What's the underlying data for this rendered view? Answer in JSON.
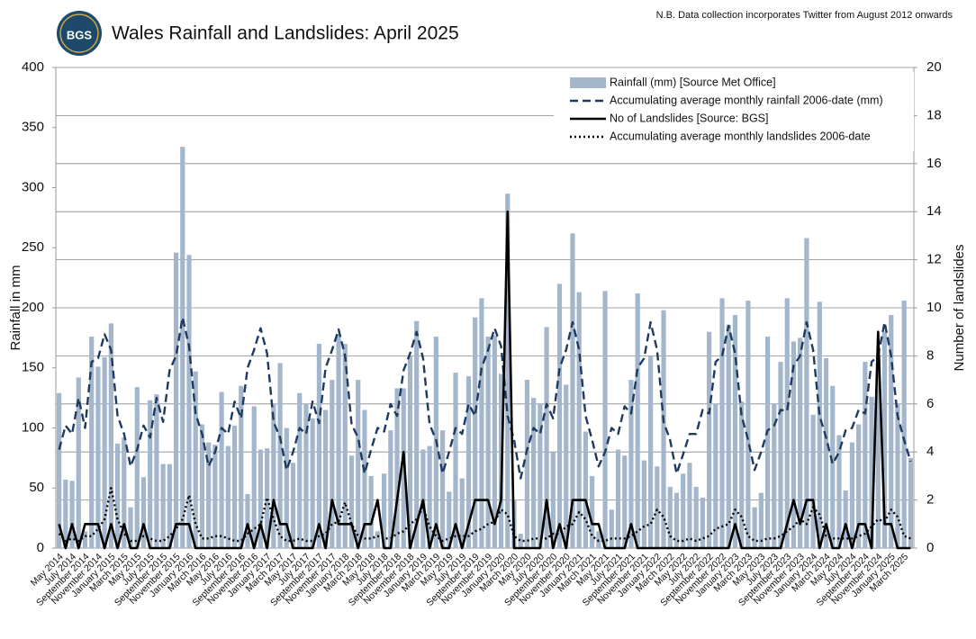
{
  "logo_text": "BGS",
  "note": "N.B. Data collection incorporates Twitter from August 2012 onwards",
  "chart_data": {
    "type": "combo",
    "title": "Wales Rainfall and Landslides: April 2025",
    "y_label": "Rainfall in mm",
    "y2_label": "Number of landslides",
    "ylim": [
      0,
      400
    ],
    "yticks": [
      0,
      50,
      100,
      150,
      200,
      250,
      300,
      350,
      400
    ],
    "y2lim": [
      0,
      20
    ],
    "y2ticks": [
      0,
      2,
      4,
      6,
      8,
      10,
      12,
      14,
      16,
      18,
      20
    ],
    "grid": "y2",
    "legend": "upper right",
    "categories": [
      "May 2014",
      null,
      "July 2014",
      null,
      "September 2014",
      null,
      "November 2014",
      null,
      "January 2015",
      null,
      "March 2015",
      null,
      "May 2015",
      null,
      "July 2015",
      null,
      "September 2015",
      null,
      "November 2015",
      null,
      "January 2016",
      null,
      "March 2016",
      null,
      "May 2016",
      null,
      "July 2016",
      null,
      "September 2016",
      null,
      "November 2016",
      null,
      "January 2017",
      null,
      "March 2017",
      null,
      "May 2017",
      null,
      "July 2017",
      null,
      "September 2017",
      null,
      "November 2017",
      null,
      "January 2018",
      null,
      "March 2018",
      null,
      "May 2018",
      null,
      "July 2018",
      null,
      "September 2018",
      null,
      "November 2018",
      null,
      "January 2019",
      null,
      "March 2019",
      null,
      "May 2019",
      null,
      "July 2019",
      null,
      "September 2019",
      null,
      "November 2019",
      null,
      "January 2020",
      null,
      "March 2020",
      null,
      "May 2020",
      null,
      "July 2020",
      null,
      "September 2020",
      null,
      "November 2020",
      null,
      "January 2021",
      null,
      "March 2021",
      null,
      "May 2021",
      null,
      "July 2021",
      null,
      "September 2021",
      null,
      "November 2021",
      null,
      "January 2022",
      null,
      "March 2022",
      null,
      "May 2022",
      null,
      "July 2022",
      null,
      "September 2022",
      null,
      "November 2022",
      null,
      "January 2023",
      null,
      "March 2023",
      null,
      "May 2023",
      null,
      "July 2023",
      null,
      "September 2023",
      null,
      "November 2023",
      null,
      "January 2024",
      null,
      "March 2024",
      null,
      "May 2024",
      null,
      "July 2024",
      null,
      "September 2024",
      null,
      "November 2024",
      null,
      "January 2025",
      null,
      "March 2025",
      null
    ],
    "series": [
      {
        "name": "Rainfall (mm) [Source Met Office]",
        "type": "bar",
        "axis": "y",
        "color": "#a3b6cc",
        "values": [
          129,
          57,
          56,
          142,
          14,
          176,
          151,
          159,
          187,
          87,
          92,
          34,
          134,
          59,
          123,
          128,
          70,
          70,
          246,
          334,
          244,
          147,
          103,
          88,
          86,
          130,
          85,
          102,
          135,
          45,
          118,
          82,
          83,
          120,
          154,
          100,
          71,
          129,
          120,
          108,
          170,
          115,
          140,
          178,
          170,
          77,
          140,
          115,
          60,
          14,
          62,
          98,
          133,
          133,
          160,
          189,
          82,
          85,
          176,
          98,
          47,
          146,
          58,
          143,
          192,
          208,
          176,
          177,
          145,
          295,
          40,
          12,
          140,
          125,
          120,
          184,
          80,
          220,
          136,
          262,
          213,
          97,
          60,
          14,
          214,
          32,
          82,
          77,
          140,
          212,
          73,
          160,
          68,
          198,
          51,
          46,
          62,
          71,
          51,
          42,
          180,
          120,
          208,
          186,
          194,
          122,
          206,
          34,
          46,
          176,
          120,
          155,
          208,
          172,
          175,
          258,
          111,
          205,
          158,
          135,
          94,
          48,
          88,
          103,
          155,
          126,
          160,
          180,
          194,
          120,
          206,
          75
        ]
      },
      {
        "name": "Accumulating average monthly rainfall 2006-date (mm)",
        "type": "line",
        "style": "dashed",
        "axis": "y",
        "color": "#1f3a5f",
        "values": [
          82,
          102,
          95,
          125,
          100,
          155,
          158,
          178,
          165,
          110,
          95,
          68,
          82,
          102,
          92,
          125,
          105,
          148,
          160,
          192,
          168,
          112,
          95,
          68,
          80,
          100,
          95,
          122,
          108,
          150,
          165,
          183,
          162,
          105,
          92,
          65,
          80,
          100,
          95,
          122,
          104,
          150,
          165,
          182,
          160,
          103,
          92,
          62,
          82,
          100,
          97,
          120,
          110,
          148,
          162,
          180,
          158,
          103,
          90,
          62,
          80,
          100,
          95,
          120,
          110,
          150,
          165,
          183,
          168,
          110,
          90,
          58,
          82,
          100,
          95,
          120,
          108,
          150,
          165,
          188,
          165,
          110,
          90,
          68,
          80,
          100,
          95,
          118,
          112,
          150,
          158,
          188,
          165,
          105,
          90,
          62,
          78,
          95,
          95,
          115,
          112,
          155,
          160,
          185,
          162,
          110,
          90,
          65,
          80,
          98,
          102,
          115,
          114,
          152,
          160,
          188,
          165,
          110,
          92,
          70,
          80,
          98,
          100,
          115,
          112,
          155,
          160,
          188,
          160,
          110,
          90,
          72
        ]
      },
      {
        "name": "No of Landslides [Source: BGS]",
        "type": "line",
        "style": "solid",
        "axis": "y2",
        "color": "#000000",
        "values": [
          1,
          0,
          1,
          0,
          1,
          1,
          1,
          0,
          1,
          0,
          1,
          0,
          0,
          1,
          0,
          0,
          0,
          0,
          1,
          1,
          1,
          0,
          0,
          0,
          0,
          0,
          0,
          0,
          0,
          1,
          0,
          1,
          0,
          2,
          1,
          1,
          0,
          0,
          0,
          0,
          1,
          0,
          2,
          1,
          1,
          1,
          0,
          1,
          1,
          2,
          0,
          0,
          2,
          4,
          0,
          1,
          2,
          0,
          1,
          0,
          0,
          1,
          0,
          1,
          2,
          2,
          2,
          1,
          2,
          14,
          0,
          0,
          0,
          0,
          0,
          2,
          0,
          1,
          0,
          2,
          2,
          2,
          1,
          1,
          0,
          0,
          0,
          0,
          1,
          0,
          0,
          0,
          0,
          0,
          0,
          0,
          0,
          0,
          0,
          0,
          0,
          0,
          0,
          0,
          1,
          0,
          0,
          0,
          0,
          0,
          0,
          0,
          1,
          2,
          1,
          2,
          2,
          0,
          1,
          0,
          0,
          1,
          0,
          1,
          1,
          0,
          9,
          1,
          1,
          0,
          0,
          0
        ]
      },
      {
        "name": "Accumulating average monthly landslides 2006-date",
        "type": "line",
        "style": "dotted",
        "axis": "y2",
        "color": "#000000",
        "values": [
          0.6,
          0.3,
          0.4,
          0.3,
          0.5,
          0.5,
          0.8,
          1.2,
          2.5,
          1.2,
          0.6,
          0.3,
          0.3,
          0.5,
          0.4,
          0.3,
          0.3,
          0.5,
          0.8,
          1.2,
          2.2,
          1.0,
          0.4,
          0.4,
          0.5,
          0.5,
          0.4,
          0.3,
          0.3,
          0.6,
          0.8,
          1.0,
          2.1,
          1.2,
          0.5,
          0.3,
          0.3,
          0.4,
          0.3,
          0.3,
          0.5,
          0.6,
          1.0,
          1.1,
          1.9,
          1.0,
          0.5,
          0.4,
          0.4,
          0.5,
          0.4,
          0.4,
          0.6,
          0.7,
          1.0,
          1.2,
          1.7,
          0.9,
          0.5,
          0.3,
          0.4,
          0.5,
          0.5,
          0.5,
          0.7,
          0.8,
          1.0,
          1.1,
          1.6,
          1.4,
          0.5,
          0.3,
          0.3,
          0.4,
          0.4,
          0.4,
          0.6,
          0.6,
          0.9,
          1.0,
          1.5,
          1.2,
          0.5,
          0.3,
          0.3,
          0.4,
          0.4,
          0.4,
          0.5,
          0.7,
          0.9,
          1.0,
          1.6,
          1.3,
          0.5,
          0.3,
          0.3,
          0.4,
          0.3,
          0.4,
          0.5,
          0.8,
          0.9,
          1.0,
          1.6,
          1.3,
          0.5,
          0.3,
          0.3,
          0.4,
          0.4,
          0.5,
          0.7,
          0.9,
          1.2,
          1.0,
          1.7,
          1.4,
          0.5,
          0.4,
          0.4,
          0.4,
          0.4,
          0.5,
          0.6,
          0.9,
          1.2,
          1.1,
          1.6,
          1.3,
          0.5,
          0.4
        ]
      }
    ]
  }
}
